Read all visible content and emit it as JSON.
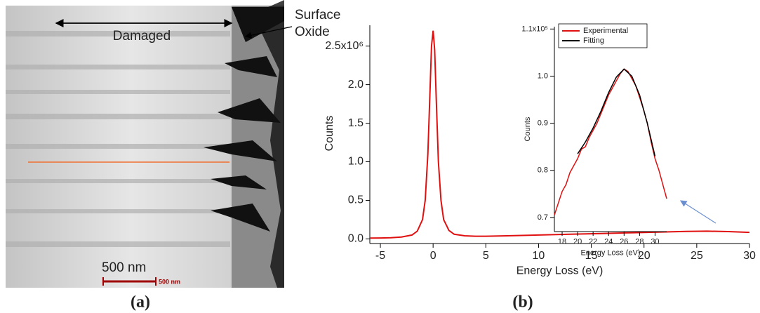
{
  "panel_a": {
    "damaged": "Damaged",
    "oxide": [
      "Surface",
      "Oxide"
    ],
    "scale": "500 nm",
    "scale_bar_text": "500 nm",
    "caption": "(a)"
  },
  "panel_b": {
    "caption": "(b)"
  },
  "chart_data": [
    {
      "type": "line",
      "color": "#e01010",
      "x": [
        -6,
        -5,
        -4,
        -3,
        -2,
        -1.5,
        -1,
        -0.75,
        -0.5,
        -0.3,
        -0.15,
        0,
        0.15,
        0.3,
        0.5,
        0.75,
        1,
        1.5,
        2,
        3,
        4,
        5,
        7,
        10,
        13,
        16,
        19,
        22,
        24,
        26,
        28,
        30
      ],
      "values": [
        10000,
        12000,
        15000,
        25000,
        50000,
        100000,
        250000,
        500000,
        1100000,
        1900000,
        2500000,
        2700000,
        2450000,
        1800000,
        1000000,
        500000,
        250000,
        110000,
        60000,
        40000,
        35000,
        35000,
        40000,
        50000,
        60000,
        70000,
        80000,
        90000,
        97000,
        100000,
        95000,
        85000
      ],
      "xlim": [
        -6,
        30
      ],
      "ylim": [
        -60000,
        2770000
      ],
      "xticks": [
        -5,
        0,
        5,
        10,
        15,
        20,
        25,
        30
      ],
      "yticks": [
        {
          "value": 0,
          "label": "0.0"
        },
        {
          "value": 500000,
          "label": "0.5"
        },
        {
          "value": 1000000,
          "label": "1.0"
        },
        {
          "value": 1500000,
          "label": "1.5"
        },
        {
          "value": 2000000,
          "label": "2.0"
        },
        {
          "value": 2500000,
          "label": "2.5x10⁶"
        }
      ],
      "xlabel": "Energy Loss (eV)",
      "ylabel": "Counts"
    },
    {
      "type": "line",
      "legend": "upper left",
      "series": [
        {
          "name": "Experimental",
          "color": "#e01010",
          "x": [
            17,
            17.5,
            18,
            18.5,
            19,
            19.5,
            20,
            20.5,
            21,
            21.5,
            22,
            22.5,
            23,
            23.5,
            24,
            24.5,
            25,
            25.5,
            26,
            26.5,
            27,
            27.5,
            28,
            28.5,
            29,
            29.5,
            30,
            30.5,
            31,
            31.5
          ],
          "values": [
            70500,
            73000,
            75500,
            77000,
            79500,
            81000,
            82500,
            84500,
            85000,
            87000,
            88500,
            90000,
            92000,
            94000,
            96000,
            97500,
            99000,
            100500,
            101500,
            101000,
            99500,
            98000,
            95500,
            93000,
            90000,
            86000,
            82500,
            80000,
            77000,
            74000
          ]
        },
        {
          "name": "Fitting",
          "color": "#000000",
          "x": [
            20,
            21,
            22,
            23,
            24,
            25,
            26,
            27,
            28,
            29,
            30
          ],
          "values": [
            83500,
            86000,
            89000,
            92500,
            96500,
            99800,
            101500,
            100000,
            96000,
            90000,
            83000
          ]
        }
      ],
      "xlim": [
        17,
        31.5
      ],
      "ylim": [
        67000,
        110500
      ],
      "xticks": [
        18,
        20,
        22,
        24,
        26,
        28,
        30
      ],
      "yticks": [
        {
          "value": 70000,
          "label": "0.7"
        },
        {
          "value": 80000,
          "label": "0.8"
        },
        {
          "value": 90000,
          "label": "0.9"
        },
        {
          "value": 100000,
          "label": "1.0"
        },
        {
          "value": 110000,
          "label": "1.1x10⁵"
        }
      ],
      "xlabel": "Energy Loss (eV)",
      "ylabel": "Counts"
    }
  ]
}
